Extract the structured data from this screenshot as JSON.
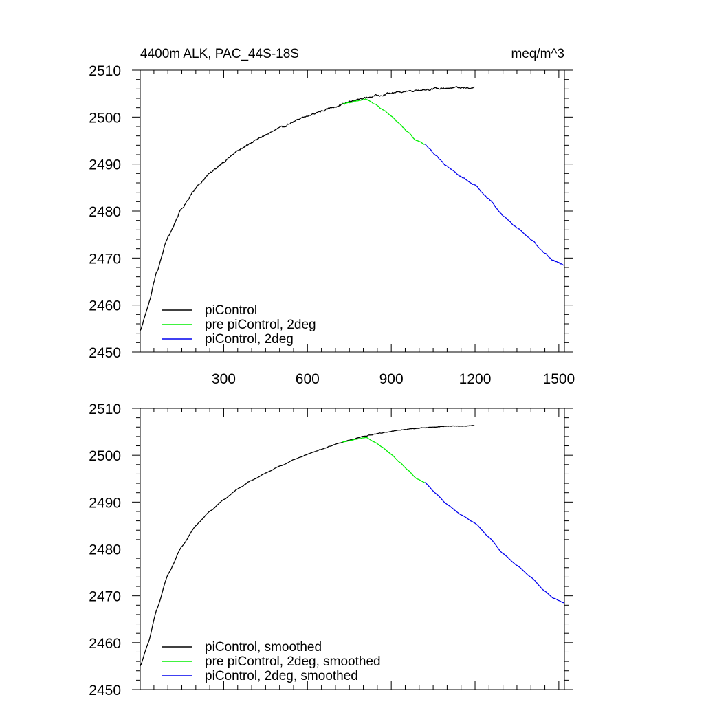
{
  "chart_data": [
    {
      "type": "line",
      "title_left": "4400m ALK, PAC_44S-18S",
      "title_right": "meq/m^3",
      "xlim": [
        1,
        1520
      ],
      "ylim": [
        2450,
        2510
      ],
      "xticks": [
        300,
        600,
        900,
        1200,
        1500
      ],
      "yticks": [
        2450,
        2460,
        2470,
        2480,
        2490,
        2500,
        2510
      ],
      "xtick_labels": [
        "300",
        "600",
        "900",
        "1200",
        "1500"
      ],
      "ytick_labels": [
        "2450",
        "2460",
        "2470",
        "2480",
        "2490",
        "2500",
        "2510"
      ],
      "legend_position": "bottom-left",
      "series": [
        {
          "name": "piControl",
          "color": "#000000",
          "noise": 0.35,
          "x": [
            1,
            30,
            60,
            100,
            150,
            200,
            250,
            300,
            350,
            400,
            450,
            500,
            550,
            600,
            650,
            700,
            750,
            800,
            850,
            900,
            950,
            1000,
            1050,
            1100,
            1150,
            1200
          ],
          "values": [
            2454.5,
            2460,
            2467,
            2474.5,
            2480.5,
            2485,
            2488,
            2490.5,
            2492.8,
            2494.6,
            2496.2,
            2497.6,
            2499,
            2500.2,
            2501.3,
            2502.3,
            2503.2,
            2504,
            2504.6,
            2505.1,
            2505.5,
            2505.8,
            2506,
            2506.2,
            2506.2,
            2506.3
          ]
        },
        {
          "name": "pre piControl, 2deg",
          "color": "#00ee00",
          "noise": 0.15,
          "x": [
            725,
            750,
            780,
            810,
            840,
            870,
            900,
            930,
            960,
            990,
            1020
          ],
          "values": [
            2502.8,
            2503.1,
            2503.5,
            2503.8,
            2502.8,
            2501.6,
            2500.2,
            2498.5,
            2496.8,
            2495,
            2494.2
          ]
        },
        {
          "name": "piControl, 2deg",
          "color": "#0000ee",
          "noise": 0.2,
          "x": [
            1020,
            1060,
            1100,
            1150,
            1200,
            1250,
            1300,
            1350,
            1400,
            1450,
            1480,
            1520
          ],
          "values": [
            2494.2,
            2491.8,
            2489.5,
            2487.3,
            2485.5,
            2482.5,
            2479,
            2476.5,
            2474,
            2471,
            2469.5,
            2468.5
          ]
        }
      ]
    },
    {
      "type": "line",
      "xlim": [
        1,
        1520
      ],
      "ylim": [
        2450,
        2510
      ],
      "xticks": [
        300,
        600,
        900,
        1200,
        1500
      ],
      "yticks": [
        2450,
        2460,
        2470,
        2480,
        2490,
        2500,
        2510
      ],
      "ytick_labels": [
        "2450",
        "2460",
        "2470",
        "2480",
        "2490",
        "2500",
        "2510"
      ],
      "legend_position": "bottom-left",
      "series": [
        {
          "name": "piControl, smoothed",
          "color": "#000000",
          "noise": 0.12,
          "x": [
            1,
            30,
            60,
            100,
            150,
            200,
            250,
            300,
            350,
            400,
            450,
            500,
            550,
            600,
            650,
            700,
            750,
            800,
            850,
            900,
            950,
            1000,
            1050,
            1100,
            1150,
            1200
          ],
          "values": [
            2455,
            2460,
            2467,
            2474.5,
            2480.5,
            2485,
            2488,
            2490.5,
            2492.8,
            2494.6,
            2496.2,
            2497.6,
            2499,
            2500.2,
            2501.3,
            2502.3,
            2503.2,
            2504,
            2504.6,
            2505.1,
            2505.5,
            2505.8,
            2506,
            2506.2,
            2506.2,
            2506.3
          ]
        },
        {
          "name": "pre piControl, 2deg, smoothed",
          "color": "#00ee00",
          "noise": 0.05,
          "x": [
            725,
            750,
            780,
            810,
            840,
            870,
            900,
            930,
            960,
            990,
            1020
          ],
          "values": [
            2502.8,
            2503.1,
            2503.5,
            2503.8,
            2502.8,
            2501.6,
            2500.2,
            2498.5,
            2496.8,
            2495,
            2494.2
          ]
        },
        {
          "name": "piControl, 2deg, smoothed",
          "color": "#0000ee",
          "noise": 0.06,
          "x": [
            1020,
            1060,
            1100,
            1150,
            1200,
            1250,
            1300,
            1350,
            1400,
            1450,
            1480,
            1520
          ],
          "values": [
            2494.2,
            2491.8,
            2489.5,
            2487.3,
            2485.5,
            2482.5,
            2479,
            2476.5,
            2474,
            2471,
            2469.5,
            2468.5
          ]
        }
      ]
    }
  ]
}
